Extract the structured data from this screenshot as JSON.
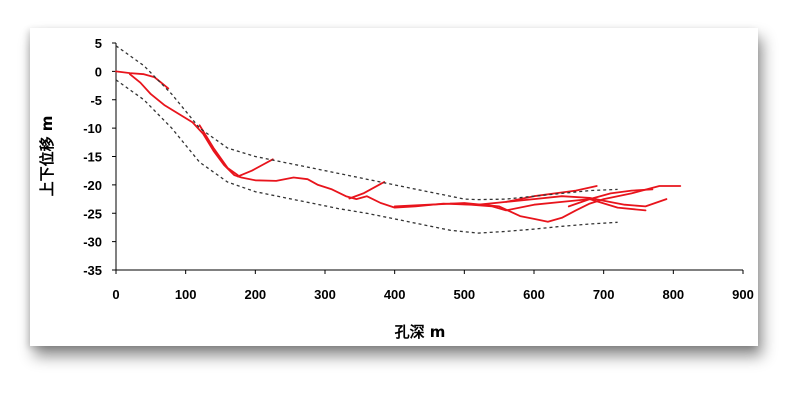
{
  "chart_data": {
    "type": "line",
    "xlabel": "孔深  m",
    "ylabel": "上下位移  m",
    "xlim": [
      0,
      900
    ],
    "ylim": [
      -35,
      5
    ],
    "x_ticks": [
      0,
      100,
      200,
      300,
      400,
      500,
      600,
      700,
      800,
      900
    ],
    "y_ticks": [
      5,
      0,
      -5,
      -10,
      -15,
      -20,
      -25,
      -30,
      -35
    ],
    "grid": false,
    "legend": "none",
    "colors": {
      "trajectory": "#e8141c",
      "envelope": "#333333",
      "axis": "#000000"
    },
    "series": [
      {
        "style": "solid-red",
        "x": [
          0,
          20,
          40,
          55,
          65,
          75
        ],
        "y": [
          0,
          -0.3,
          -0.5,
          -1,
          -2,
          -3
        ]
      },
      {
        "style": "solid-red",
        "x": [
          20,
          35,
          50,
          70,
          90,
          110,
          125,
          140,
          155,
          170,
          180,
          200,
          230,
          255,
          275,
          290,
          310,
          330,
          345,
          360,
          380,
          400,
          430,
          470,
          510,
          540,
          560,
          600,
          640,
          680,
          720,
          760
        ],
        "y": [
          -0.5,
          -2,
          -4,
          -6,
          -7.5,
          -9,
          -11,
          -14,
          -16.5,
          -18.3,
          -18.7,
          -19.2,
          -19.3,
          -18.7,
          -19,
          -20,
          -20.8,
          -22,
          -22.5,
          -22,
          -23.2,
          -24,
          -23.8,
          -23.3,
          -23.5,
          -23.8,
          -24.5,
          -23.5,
          -23,
          -22.5,
          -24,
          -24.5
        ]
      },
      {
        "style": "solid-red",
        "x": [
          120,
          140,
          160,
          175
        ],
        "y": [
          -9.5,
          -13.5,
          -17,
          -18.3
        ]
      },
      {
        "style": "solid-red",
        "x": [
          175,
          195,
          210,
          225
        ],
        "y": [
          -18.5,
          -17.5,
          -16.5,
          -15.5
        ]
      },
      {
        "style": "solid-red",
        "x": [
          335,
          355,
          370,
          385
        ],
        "y": [
          -22.4,
          -21.5,
          -20.5,
          -19.5
        ]
      },
      {
        "style": "solid-red",
        "x": [
          400,
          450,
          500,
          550,
          580,
          600,
          620,
          640,
          660,
          680,
          700,
          740,
          780,
          810
        ],
        "y": [
          -23.8,
          -23.5,
          -23.2,
          -23.8,
          -25.5,
          -26,
          -26.5,
          -25.8,
          -24.5,
          -23.3,
          -22.5,
          -21.5,
          -20.2,
          -20.2
        ]
      },
      {
        "style": "solid-red",
        "x": [
          480,
          520,
          560,
          600,
          640,
          680,
          700,
          730,
          760,
          790
        ],
        "y": [
          -23.3,
          -23.5,
          -23,
          -22.5,
          -22,
          -22.3,
          -22.8,
          -23.5,
          -23.8,
          -22.5
        ]
      },
      {
        "style": "solid-red",
        "x": [
          560,
          600,
          630,
          660,
          690
        ],
        "y": [
          -23,
          -22,
          -21.5,
          -21,
          -20.2
        ]
      },
      {
        "style": "solid-red",
        "x": [
          650,
          680,
          710,
          740,
          770
        ],
        "y": [
          -23.8,
          -22.5,
          -21.5,
          -21,
          -20.8
        ]
      },
      {
        "style": "dashed-envelope",
        "x": [
          0,
          40,
          80,
          120,
          160,
          200,
          240,
          280,
          320,
          360,
          400,
          440,
          480,
          500,
          520,
          560,
          600,
          640,
          680,
          720
        ],
        "y": [
          4.5,
          1,
          -4,
          -10,
          -13.5,
          -15,
          -16,
          -17,
          -18,
          -19,
          -20,
          -21,
          -22,
          -22.5,
          -22.6,
          -22.5,
          -22,
          -21.5,
          -21,
          -20.8
        ]
      },
      {
        "style": "dashed-envelope",
        "x": [
          0,
          40,
          80,
          120,
          160,
          200,
          240,
          280,
          320,
          360,
          400,
          440,
          480,
          520,
          560,
          600,
          640,
          680,
          720
        ],
        "y": [
          -1.5,
          -5,
          -10,
          -16,
          -19.5,
          -21.2,
          -22.2,
          -23.2,
          -24.2,
          -25,
          -26,
          -27,
          -28,
          -28.5,
          -28.2,
          -27.8,
          -27.3,
          -26.9,
          -26.6
        ]
      }
    ]
  }
}
